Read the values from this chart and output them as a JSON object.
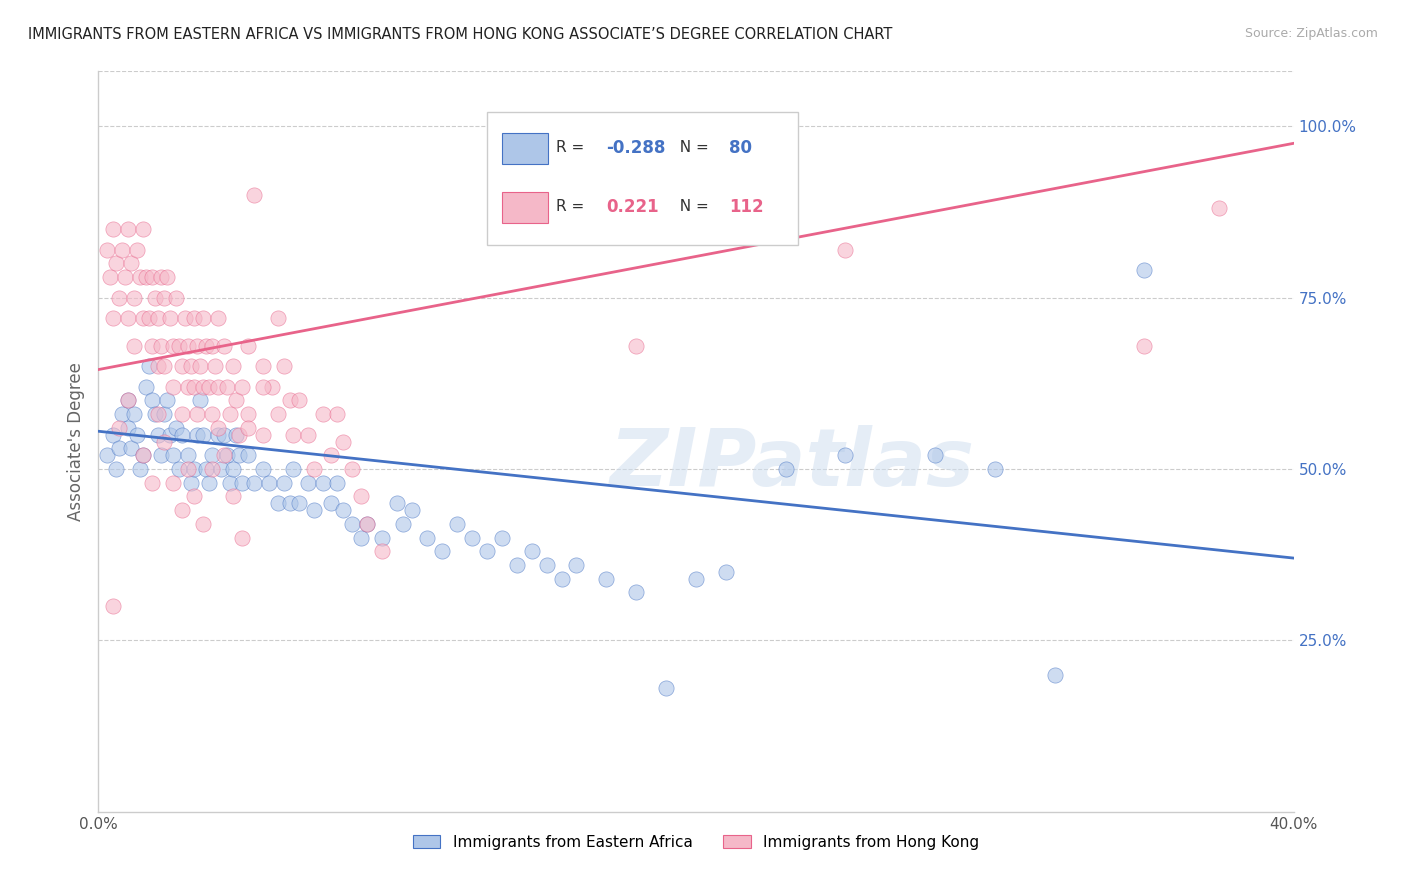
{
  "title": "IMMIGRANTS FROM EASTERN AFRICA VS IMMIGRANTS FROM HONG KONG ASSOCIATE’S DEGREE CORRELATION CHART",
  "source": "Source: ZipAtlas.com",
  "ylabel": "Associate's Degree",
  "yticks_labels": [
    "25.0%",
    "50.0%",
    "75.0%",
    "100.0%"
  ],
  "yticks_vals": [
    0.25,
    0.5,
    0.75,
    1.0
  ],
  "xlim": [
    0.0,
    0.4
  ],
  "ylim": [
    0.0,
    1.08
  ],
  "legend_r_blue": "-0.288",
  "legend_n_blue": "80",
  "legend_r_pink": "0.221",
  "legend_n_pink": "112",
  "legend_label_blue": "Immigrants from Eastern Africa",
  "legend_label_pink": "Immigrants from Hong Kong",
  "blue_fill": "#aec6e8",
  "pink_fill": "#f5b8c8",
  "blue_edge": "#4472c4",
  "pink_edge": "#e8638a",
  "blue_line": "#4472c4",
  "pink_line": "#e8638a",
  "watermark": "ZIPatlas",
  "blue_scatter": [
    [
      0.003,
      0.52
    ],
    [
      0.005,
      0.55
    ],
    [
      0.006,
      0.5
    ],
    [
      0.007,
      0.53
    ],
    [
      0.008,
      0.58
    ],
    [
      0.01,
      0.6
    ],
    [
      0.01,
      0.56
    ],
    [
      0.011,
      0.53
    ],
    [
      0.012,
      0.58
    ],
    [
      0.013,
      0.55
    ],
    [
      0.014,
      0.5
    ],
    [
      0.015,
      0.52
    ],
    [
      0.016,
      0.62
    ],
    [
      0.017,
      0.65
    ],
    [
      0.018,
      0.6
    ],
    [
      0.019,
      0.58
    ],
    [
      0.02,
      0.55
    ],
    [
      0.021,
      0.52
    ],
    [
      0.022,
      0.58
    ],
    [
      0.023,
      0.6
    ],
    [
      0.024,
      0.55
    ],
    [
      0.025,
      0.52
    ],
    [
      0.026,
      0.56
    ],
    [
      0.027,
      0.5
    ],
    [
      0.028,
      0.55
    ],
    [
      0.03,
      0.52
    ],
    [
      0.031,
      0.48
    ],
    [
      0.032,
      0.5
    ],
    [
      0.033,
      0.55
    ],
    [
      0.034,
      0.6
    ],
    [
      0.035,
      0.55
    ],
    [
      0.036,
      0.5
    ],
    [
      0.037,
      0.48
    ],
    [
      0.038,
      0.52
    ],
    [
      0.04,
      0.55
    ],
    [
      0.041,
      0.5
    ],
    [
      0.042,
      0.55
    ],
    [
      0.043,
      0.52
    ],
    [
      0.044,
      0.48
    ],
    [
      0.045,
      0.5
    ],
    [
      0.046,
      0.55
    ],
    [
      0.047,
      0.52
    ],
    [
      0.048,
      0.48
    ],
    [
      0.05,
      0.52
    ],
    [
      0.052,
      0.48
    ],
    [
      0.055,
      0.5
    ],
    [
      0.057,
      0.48
    ],
    [
      0.06,
      0.45
    ],
    [
      0.062,
      0.48
    ],
    [
      0.064,
      0.45
    ],
    [
      0.065,
      0.5
    ],
    [
      0.067,
      0.45
    ],
    [
      0.07,
      0.48
    ],
    [
      0.072,
      0.44
    ],
    [
      0.075,
      0.48
    ],
    [
      0.078,
      0.45
    ],
    [
      0.08,
      0.48
    ],
    [
      0.082,
      0.44
    ],
    [
      0.085,
      0.42
    ],
    [
      0.088,
      0.4
    ],
    [
      0.09,
      0.42
    ],
    [
      0.095,
      0.4
    ],
    [
      0.1,
      0.45
    ],
    [
      0.102,
      0.42
    ],
    [
      0.105,
      0.44
    ],
    [
      0.11,
      0.4
    ],
    [
      0.115,
      0.38
    ],
    [
      0.12,
      0.42
    ],
    [
      0.125,
      0.4
    ],
    [
      0.13,
      0.38
    ],
    [
      0.135,
      0.4
    ],
    [
      0.14,
      0.36
    ],
    [
      0.145,
      0.38
    ],
    [
      0.15,
      0.36
    ],
    [
      0.155,
      0.34
    ],
    [
      0.16,
      0.36
    ],
    [
      0.17,
      0.34
    ],
    [
      0.18,
      0.32
    ],
    [
      0.19,
      0.18
    ],
    [
      0.2,
      0.34
    ],
    [
      0.21,
      0.35
    ],
    [
      0.23,
      0.5
    ],
    [
      0.25,
      0.52
    ],
    [
      0.28,
      0.52
    ],
    [
      0.3,
      0.5
    ],
    [
      0.32,
      0.2
    ],
    [
      0.35,
      0.79
    ]
  ],
  "pink_scatter": [
    [
      0.003,
      0.82
    ],
    [
      0.004,
      0.78
    ],
    [
      0.005,
      0.85
    ],
    [
      0.005,
      0.72
    ],
    [
      0.006,
      0.8
    ],
    [
      0.007,
      0.75
    ],
    [
      0.008,
      0.82
    ],
    [
      0.009,
      0.78
    ],
    [
      0.01,
      0.85
    ],
    [
      0.01,
      0.72
    ],
    [
      0.011,
      0.8
    ],
    [
      0.012,
      0.75
    ],
    [
      0.012,
      0.68
    ],
    [
      0.013,
      0.82
    ],
    [
      0.014,
      0.78
    ],
    [
      0.015,
      0.85
    ],
    [
      0.015,
      0.72
    ],
    [
      0.016,
      0.78
    ],
    [
      0.017,
      0.72
    ],
    [
      0.018,
      0.78
    ],
    [
      0.018,
      0.68
    ],
    [
      0.019,
      0.75
    ],
    [
      0.02,
      0.72
    ],
    [
      0.02,
      0.65
    ],
    [
      0.021,
      0.78
    ],
    [
      0.021,
      0.68
    ],
    [
      0.022,
      0.75
    ],
    [
      0.022,
      0.65
    ],
    [
      0.023,
      0.78
    ],
    [
      0.024,
      0.72
    ],
    [
      0.025,
      0.68
    ],
    [
      0.025,
      0.62
    ],
    [
      0.026,
      0.75
    ],
    [
      0.027,
      0.68
    ],
    [
      0.028,
      0.65
    ],
    [
      0.028,
      0.58
    ],
    [
      0.029,
      0.72
    ],
    [
      0.03,
      0.68
    ],
    [
      0.03,
      0.62
    ],
    [
      0.031,
      0.65
    ],
    [
      0.032,
      0.72
    ],
    [
      0.032,
      0.62
    ],
    [
      0.033,
      0.68
    ],
    [
      0.033,
      0.58
    ],
    [
      0.034,
      0.65
    ],
    [
      0.035,
      0.72
    ],
    [
      0.035,
      0.62
    ],
    [
      0.036,
      0.68
    ],
    [
      0.037,
      0.62
    ],
    [
      0.038,
      0.68
    ],
    [
      0.038,
      0.58
    ],
    [
      0.039,
      0.65
    ],
    [
      0.04,
      0.72
    ],
    [
      0.04,
      0.62
    ],
    [
      0.042,
      0.68
    ],
    [
      0.043,
      0.62
    ],
    [
      0.044,
      0.58
    ],
    [
      0.045,
      0.65
    ],
    [
      0.046,
      0.6
    ],
    [
      0.047,
      0.55
    ],
    [
      0.048,
      0.62
    ],
    [
      0.05,
      0.68
    ],
    [
      0.05,
      0.58
    ],
    [
      0.052,
      0.9
    ],
    [
      0.055,
      0.65
    ],
    [
      0.055,
      0.55
    ],
    [
      0.058,
      0.62
    ],
    [
      0.06,
      0.58
    ],
    [
      0.062,
      0.65
    ],
    [
      0.064,
      0.6
    ],
    [
      0.065,
      0.55
    ],
    [
      0.067,
      0.6
    ],
    [
      0.07,
      0.55
    ],
    [
      0.072,
      0.5
    ],
    [
      0.075,
      0.58
    ],
    [
      0.078,
      0.52
    ],
    [
      0.08,
      0.58
    ],
    [
      0.082,
      0.54
    ],
    [
      0.085,
      0.5
    ],
    [
      0.088,
      0.46
    ],
    [
      0.09,
      0.42
    ],
    [
      0.095,
      0.38
    ],
    [
      0.005,
      0.3
    ],
    [
      0.007,
      0.56
    ],
    [
      0.01,
      0.6
    ],
    [
      0.015,
      0.52
    ],
    [
      0.018,
      0.48
    ],
    [
      0.02,
      0.58
    ],
    [
      0.022,
      0.54
    ],
    [
      0.025,
      0.48
    ],
    [
      0.028,
      0.44
    ],
    [
      0.03,
      0.5
    ],
    [
      0.032,
      0.46
    ],
    [
      0.035,
      0.42
    ],
    [
      0.038,
      0.5
    ],
    [
      0.04,
      0.56
    ],
    [
      0.042,
      0.52
    ],
    [
      0.045,
      0.46
    ],
    [
      0.048,
      0.4
    ],
    [
      0.05,
      0.56
    ],
    [
      0.055,
      0.62
    ],
    [
      0.06,
      0.72
    ],
    [
      0.18,
      0.68
    ],
    [
      0.25,
      0.82
    ],
    [
      0.35,
      0.68
    ],
    [
      0.375,
      0.88
    ]
  ],
  "blue_trend_x": [
    0.0,
    0.4
  ],
  "blue_trend_y": [
    0.555,
    0.37
  ],
  "pink_trend_x": [
    0.0,
    0.4
  ],
  "pink_trend_y": [
    0.645,
    0.975
  ]
}
